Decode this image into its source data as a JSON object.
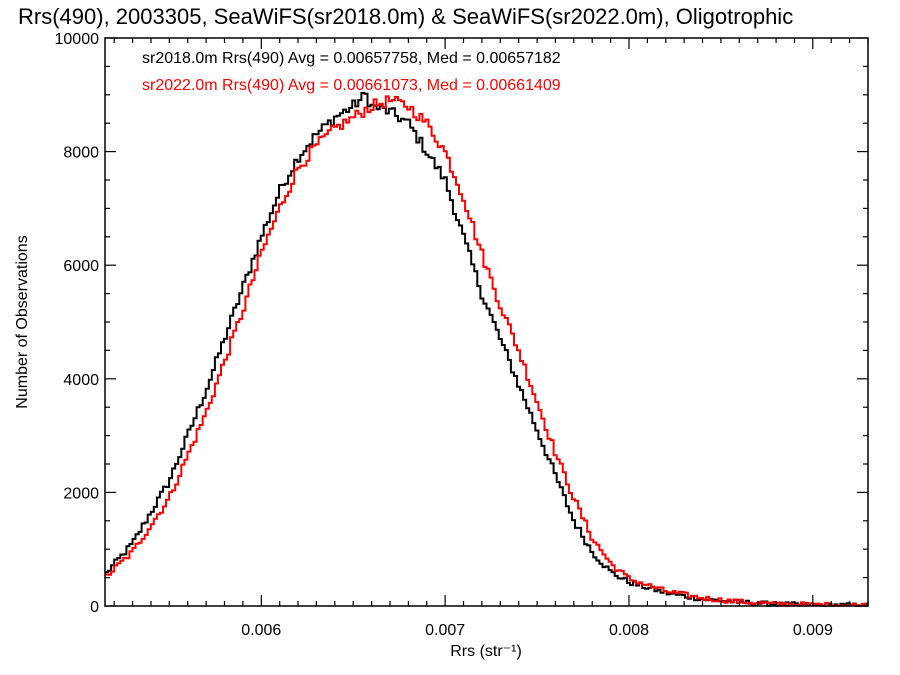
{
  "chart_data": {
    "type": "line",
    "title": "Rrs(490), 2003305, SeaWiFS(sr2018.0m) & SeaWiFS(sr2022.0m), Oligotrophic",
    "xlabel": "Rrs (str⁻¹)",
    "ylabel": "Number of Observations",
    "xlim": [
      0.00515,
      0.0093
    ],
    "ylim": [
      0,
      10000
    ],
    "x_ticks": [
      0.006,
      0.007,
      0.008,
      0.009
    ],
    "x_tick_labels": [
      "0.006",
      "0.007",
      "0.008",
      "0.009"
    ],
    "y_ticks": [
      0,
      2000,
      4000,
      6000,
      8000,
      10000
    ],
    "y_tick_labels": [
      "0",
      "2000",
      "4000",
      "6000",
      "8000",
      "10000"
    ],
    "grid": false,
    "legend_position": "top-left",
    "annotations": [
      {
        "text": "sr2018.0m Rrs(490) Avg = 0.00657758, Med = 0.00657182",
        "color": "#000000"
      },
      {
        "text": "sr2022.0m Rrs(490) Avg = 0.00661073, Med = 0.00661409",
        "color": "#ff0000"
      }
    ],
    "series": [
      {
        "color": "#000000",
        "x": [
          0.00515,
          0.0053,
          0.0055,
          0.0057,
          0.0059,
          0.006,
          0.0061,
          0.0062,
          0.0063,
          0.0064,
          0.0065,
          0.00657,
          0.0066,
          0.0067,
          0.0068,
          0.0069,
          0.007,
          0.0071,
          0.0072,
          0.0073,
          0.0074,
          0.0075,
          0.0076,
          0.0077,
          0.0078,
          0.0079,
          0.008,
          0.0082,
          0.0084,
          0.0086,
          0.0088,
          0.0093
        ],
        "values": [
          550,
          1100,
          2200,
          3800,
          5600,
          6500,
          7300,
          7900,
          8300,
          8600,
          8800,
          9000,
          8800,
          8700,
          8500,
          8000,
          7500,
          6500,
          5500,
          4700,
          3900,
          3100,
          2300,
          1500,
          950,
          600,
          420,
          230,
          120,
          70,
          30,
          10
        ]
      },
      {
        "color": "#ff0000",
        "x": [
          0.00515,
          0.0053,
          0.0055,
          0.0057,
          0.0059,
          0.006,
          0.0061,
          0.0062,
          0.0063,
          0.0064,
          0.0065,
          0.0066,
          0.0067,
          0.0068,
          0.0069,
          0.007,
          0.0071,
          0.0072,
          0.0073,
          0.0074,
          0.0075,
          0.0076,
          0.0077,
          0.0078,
          0.0079,
          0.008,
          0.0082,
          0.0084,
          0.0086,
          0.0088,
          0.0093
        ],
        "values": [
          500,
          950,
          1900,
          3400,
          5200,
          6200,
          7000,
          7700,
          8100,
          8400,
          8600,
          8800,
          8900,
          8800,
          8500,
          8000,
          7200,
          6200,
          5300,
          4500,
          3600,
          2700,
          1900,
          1200,
          750,
          480,
          260,
          140,
          75,
          35,
          10
        ]
      }
    ]
  }
}
